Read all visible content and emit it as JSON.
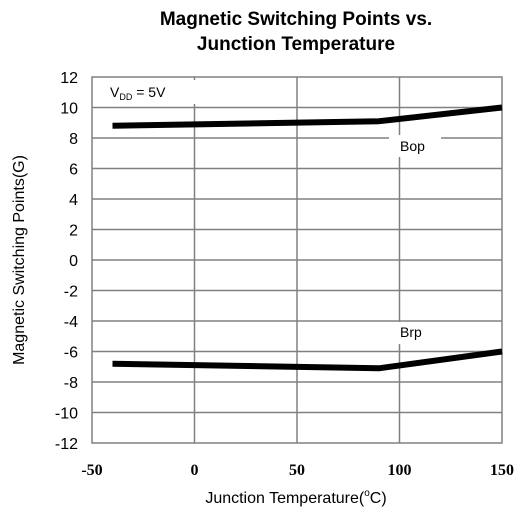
{
  "chart_data": {
    "type": "line",
    "title_line1": "Magnetic Switching Points vs.",
    "title_line2": "Junction Temperature",
    "xlabel_main": "Junction Temperature(",
    "xlabel_sup": "o",
    "xlabel_tail": "C)",
    "ylabel": "Magnetic Switching Points(G)",
    "xlim": [
      -50,
      150
    ],
    "ylim": [
      -12,
      12
    ],
    "x_ticks": [
      "-50",
      "0",
      "50",
      "100",
      "150"
    ],
    "y_ticks": [
      "12",
      "10",
      "8",
      "6",
      "4",
      "2",
      "0",
      "-2",
      "-4",
      "-6",
      "-8",
      "-10",
      "-12"
    ],
    "grid": true,
    "colors": {
      "line": "#000000",
      "grid": "#808080",
      "frame": "#808080"
    },
    "annotation": {
      "v": "V",
      "sub": "DD",
      "rest": " = 5V"
    },
    "series": [
      {
        "name": "Bop",
        "x": [
          -40,
          90,
          150
        ],
        "y": [
          8.8,
          9.1,
          10.0
        ]
      },
      {
        "name": "Brp",
        "x": [
          -40,
          90,
          150
        ],
        "y": [
          -6.8,
          -7.1,
          -6.0
        ]
      }
    ]
  }
}
